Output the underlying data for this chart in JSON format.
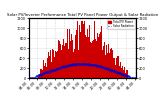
{
  "title": "Solar PV/Inverter Performance Total PV Panel Power Output & Solar Radiation",
  "bg_color": "#ffffff",
  "plot_bg": "#ffffff",
  "bar_color": "#cc0000",
  "line_color": "#0000cc",
  "grid_color": "#bbbbbb",
  "ylim_left": [
    0,
    1200
  ],
  "ylim_right": [
    0,
    1200
  ],
  "num_points": 144,
  "legend_pv": "Total PV Power",
  "legend_rad": "Solar Radiation",
  "yticks": [
    0,
    200,
    400,
    600,
    800,
    1000,
    1200
  ],
  "ytick_labels": [
    "0",
    "200",
    "400",
    "600",
    "800",
    "1000",
    "1200"
  ]
}
